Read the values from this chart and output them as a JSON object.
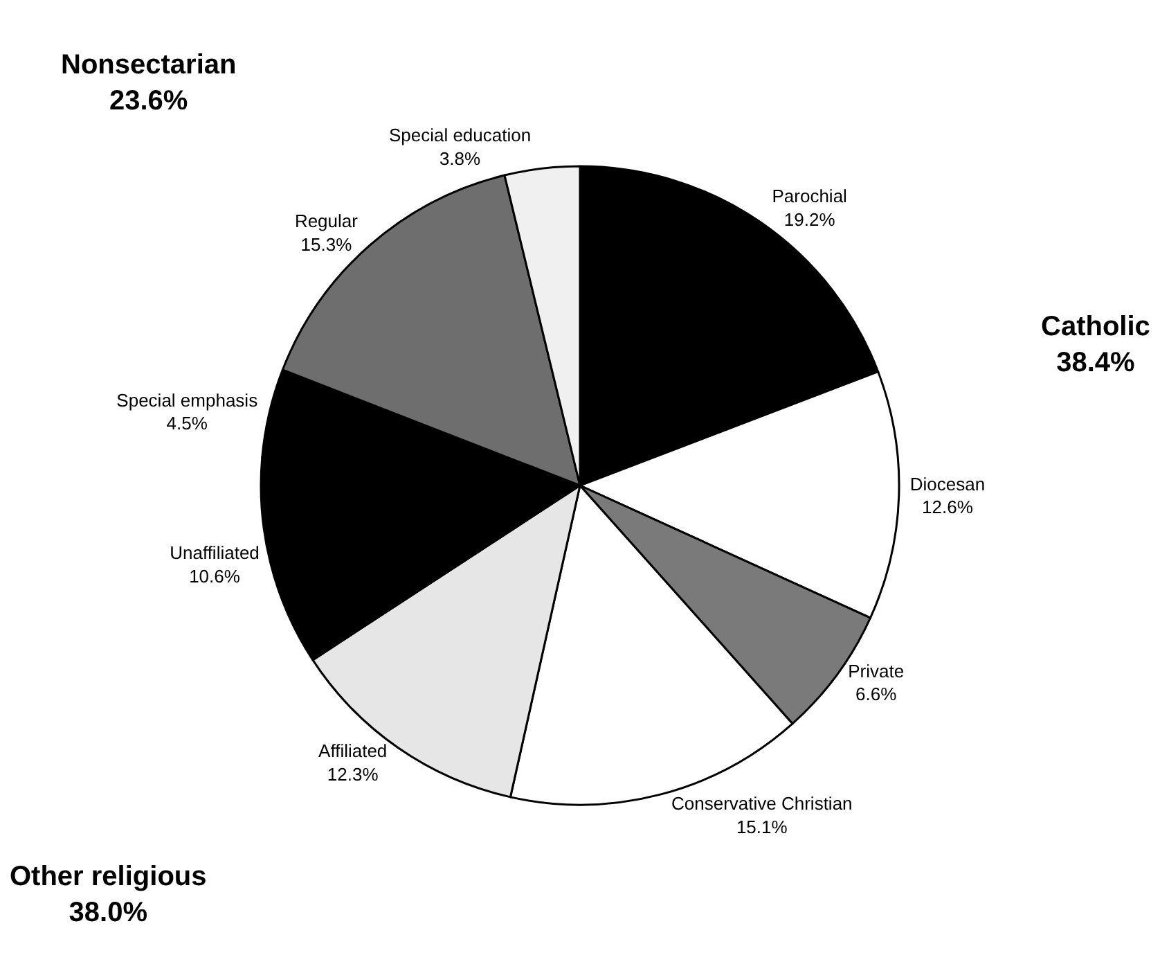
{
  "chart_data": {
    "type": "pie",
    "categories": [
      "Parochial",
      "Diocesan",
      "Private",
      "Conservative Christian",
      "Affiliated",
      "Unaffiliated",
      "Special emphasis",
      "Regular",
      "Special education"
    ],
    "values": [
      19.2,
      12.6,
      6.6,
      15.1,
      12.3,
      10.6,
      4.5,
      15.3,
      3.8
    ],
    "value_labels": [
      "19.2%",
      "12.6%",
      "6.6%",
      "15.1%",
      "12.3%",
      "10.6%",
      "4.5%",
      "15.3%",
      "3.8%"
    ],
    "colors": [
      "#000000",
      "#ffffff",
      "#7a7a7a",
      "#ffffff",
      "#e6e6e6",
      "#000000",
      "#000000",
      "#6e6e6e",
      "#f0f0f0"
    ],
    "annotations": [
      "Catholic\n38.4%",
      "Other religious\n38.0%",
      "Nonsectarian\n23.6%"
    ],
    "legend": false
  }
}
